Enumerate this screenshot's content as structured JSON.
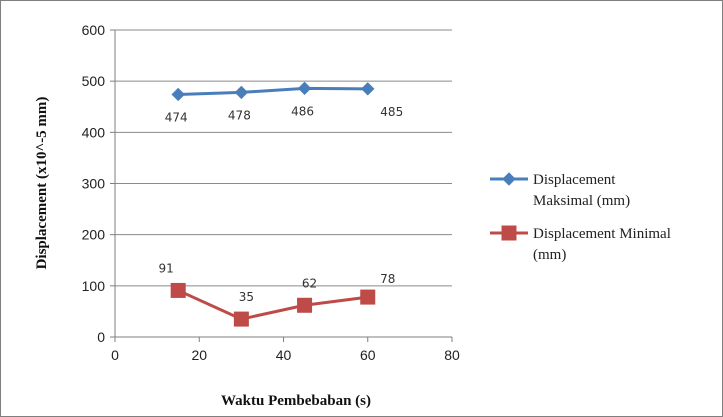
{
  "chart_data": {
    "type": "line",
    "title": "",
    "xlabel": "Waktu Pembebaban (s)",
    "ylabel": "Displacement (x10^-5 mm)",
    "xlim": [
      0,
      80
    ],
    "ylim": [
      0,
      600
    ],
    "xticks": [
      0,
      20,
      40,
      60,
      80
    ],
    "yticks": [
      0,
      100,
      200,
      300,
      400,
      500,
      600
    ],
    "grid": "horizontal",
    "legend_position": "right",
    "x": [
      15,
      30,
      45,
      60
    ],
    "series": [
      {
        "name": "Displacement Maksimal (mm)",
        "legend_lines": [
          "Displacement",
          "Maksimal (mm)"
        ],
        "values": [
          474,
          478,
          486,
          485
        ],
        "labels": [
          "474",
          "478",
          "486",
          "485"
        ],
        "color": "#4a7ebb",
        "marker": "diamond",
        "label_position": "below"
      },
      {
        "name": "Displacement Minimal (mm)",
        "legend_lines": [
          "Displacement Minimal",
          "(mm)"
        ],
        "values": [
          91,
          35,
          62,
          78
        ],
        "labels": [
          "91",
          "35",
          "62",
          "78"
        ],
        "color": "#be4b48",
        "marker": "square",
        "label_position": "above"
      }
    ]
  }
}
